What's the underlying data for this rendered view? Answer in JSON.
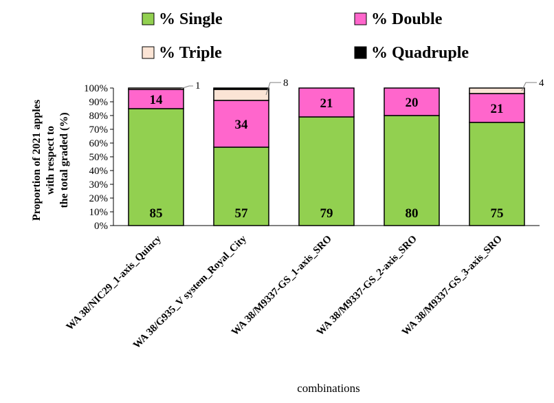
{
  "chart_data": {
    "type": "bar",
    "stacked": true,
    "categories": [
      "WA 38/NIC29_1-axis_Quincy",
      "WA 38/G935_V system_Royal_City",
      "WA 38/M9337-GS_1-axis_SRO",
      "WA 38/M9337-GS_2-axis_SRO",
      "WA 38/M9337-GS_3-axis_SRO"
    ],
    "series": [
      {
        "name": "% Single",
        "color": "#92d050",
        "values": [
          85,
          57,
          79,
          80,
          75
        ]
      },
      {
        "name": "% Double",
        "color": "#ff66cc",
        "values": [
          14,
          34,
          21,
          20,
          21
        ]
      },
      {
        "name": "% Triple",
        "color": "#fbe4d5",
        "values": [
          1,
          8,
          0,
          0,
          4
        ]
      },
      {
        "name": "% Quadruple",
        "color": "#000000",
        "values": [
          0,
          1,
          0,
          0,
          0
        ]
      }
    ],
    "data_labels": {
      "% Single": [
        "85",
        "57",
        "79",
        "80",
        "75"
      ],
      "% Double": [
        "14",
        "34",
        "21",
        "20",
        "21"
      ]
    },
    "callouts": [
      "1",
      "8",
      "4"
    ],
    "xlabel": "combinations",
    "ylabel": "Proportion of 2021 apples with respect to the total graded (%)",
    "ylabel_lines": [
      "Proportion of 2021 apples",
      "with respect to",
      "the total graded (%)"
    ],
    "ylim": [
      0,
      100
    ],
    "yticks": [
      "0%",
      "10%",
      "20%",
      "30%",
      "40%",
      "50%",
      "60%",
      "70%",
      "80%",
      "90%",
      "100%"
    ],
    "legend_position": "top",
    "grid": false
  }
}
